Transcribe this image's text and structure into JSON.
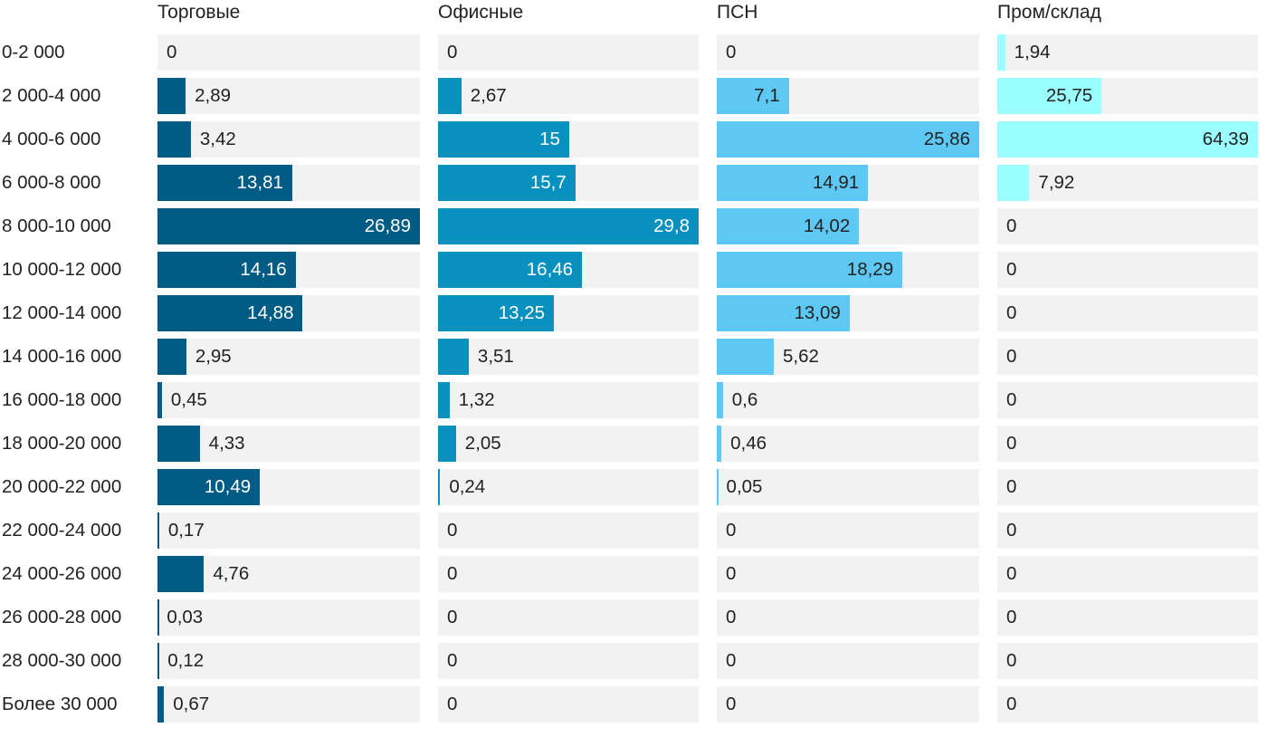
{
  "chart_data": {
    "type": "bar",
    "orientation": "horizontal",
    "layout": "small-multiples",
    "categories": [
      "0-2 000",
      "2 000-4 000",
      "4 000-6 000",
      "6 000-8 000",
      "8 000-10 000",
      "10 000-12 000",
      "12 000-14 000",
      "14 000-16 000",
      "16 000-18 000",
      "18 000-20 000",
      "20 000-22 000",
      "22 000-24 000",
      "24 000-26 000",
      "26 000-28 000",
      "28 000-30 000",
      "Более 30 000"
    ],
    "panels": [
      {
        "title": "Торговые",
        "color": "#005b85",
        "label_inside_color": "#ffffff",
        "values": [
          "0",
          "2,89",
          "3,42",
          "13,81",
          "26,89",
          "14,16",
          "14,88",
          "2,95",
          "0,45",
          "4,33",
          "10,49",
          "0,17",
          "4,76",
          "0,03",
          "0,12",
          "0,67"
        ]
      },
      {
        "title": "Офисные",
        "color": "#0891be",
        "label_inside_color": "#ffffff",
        "values": [
          "0",
          "2,67",
          "15",
          "15,7",
          "29,8",
          "16,46",
          "13,25",
          "3,51",
          "1,32",
          "2,05",
          "0,24",
          "0",
          "0",
          "0",
          "0",
          "0"
        ]
      },
      {
        "title": "ПСН",
        "color": "#5ec8f4",
        "label_inside_color": "#222222",
        "values": [
          "0",
          "7,1",
          "25,86",
          "14,91",
          "14,02",
          "18,29",
          "13,09",
          "5,62",
          "0,6",
          "0,46",
          "0,05",
          "0",
          "0",
          "0",
          "0",
          "0"
        ]
      },
      {
        "title": "Пром/склад",
        "color": "#9cffff",
        "label_inside_color": "#222222",
        "values": [
          "1,94",
          "25,75",
          "64,39",
          "7,92",
          "0",
          "0",
          "0",
          "0",
          "0",
          "0",
          "0",
          "0",
          "0",
          "0",
          "0",
          "0"
        ]
      }
    ],
    "grid": false,
    "legend": "none"
  }
}
